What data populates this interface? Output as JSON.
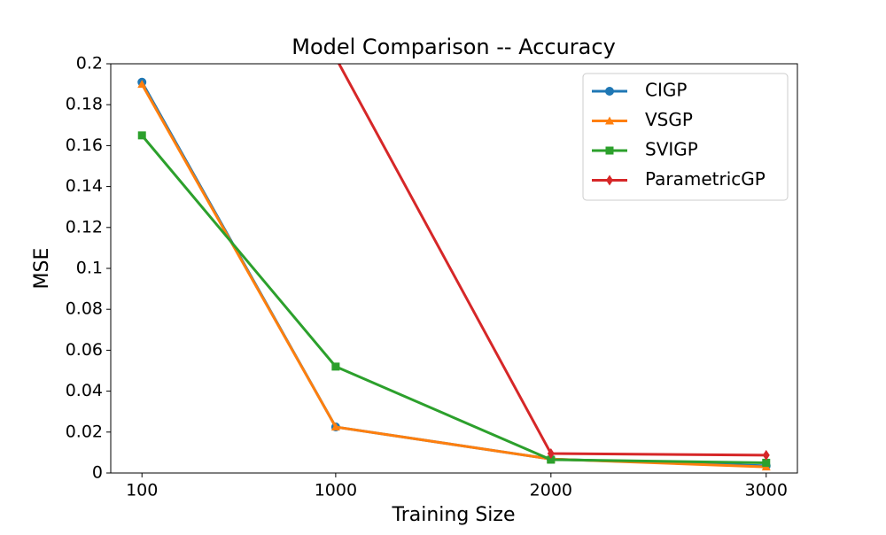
{
  "chart_data": {
    "type": "line",
    "title": "Model Comparison -- Accuracy",
    "x_label": "Training Size",
    "y_label": "MSE",
    "x": [
      100,
      1000,
      2000,
      3000
    ],
    "xlim": [
      -45,
      3145
    ],
    "xticks": [
      100,
      1000,
      2000,
      3000
    ],
    "ylim": [
      0,
      0.2
    ],
    "yticks": [
      0,
      0.02,
      0.04,
      0.06,
      0.08,
      0.1,
      0.12,
      0.14,
      0.16,
      0.18,
      0.2
    ],
    "legend": "upper right",
    "series": [
      {
        "name": "CIGP",
        "color": "#1f77b4",
        "marker": "circle",
        "values": [
          0.191,
          0.0225,
          0.0068,
          0.0035
        ]
      },
      {
        "name": "VSGP",
        "color": "#ff7f0e",
        "marker": "triangle",
        "values": [
          0.19,
          0.0225,
          0.0068,
          0.003
        ]
      },
      {
        "name": "SVIGP",
        "color": "#2ca02c",
        "marker": "square",
        "values": [
          0.165,
          0.052,
          0.0065,
          0.005
        ]
      },
      {
        "name": "ParametricGP",
        "color": "#d62728",
        "marker": "diamond",
        "values": [
          null,
          0.203,
          0.0095,
          0.0087
        ]
      }
    ]
  }
}
